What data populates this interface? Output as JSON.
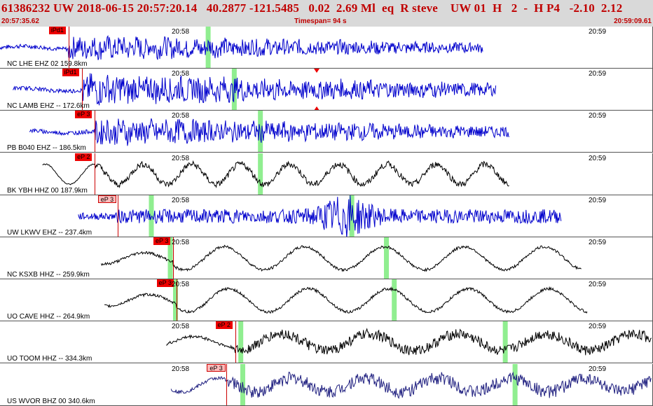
{
  "header": {
    "title": "61386232 UW 2018-06-15 20:57:20.14   40.2877 -121.5485   0.02  2.69 Ml  eq  R steve    UW 01  H   2  -  H P4   -2.10  2.12",
    "start_time": "20:57:35.62",
    "timespan": "Timespan=  94 s",
    "end_time": "20:59:09.61"
  },
  "colors": {
    "header_text": "#c00000",
    "trace_blue": "#0000cc",
    "trace_black": "#000000",
    "trace_navy": "#202080",
    "bar_bg": "#d9d9d9",
    "marker": "#90ee90",
    "pick_red": "#ee0000",
    "pick_pink": "#ffbcbc"
  },
  "traces": [
    {
      "label": "NC LHE EHZ 02 159.8km",
      "tick1": "20:58",
      "tick2": "20:59",
      "pick": "iPd1",
      "pick_style": "red",
      "color": "blue",
      "start": 0.0,
      "pick_time": 0.105,
      "end": 0.74,
      "amp": 0.55,
      "wave": "hf",
      "markers": [
        0.315
      ],
      "flag": null
    },
    {
      "label": "NC LAMB EHZ -- 172.6km",
      "tick1": "20:58",
      "tick2": "20:59",
      "pick": "iPd1",
      "pick_style": "red",
      "color": "blue",
      "start": 0.02,
      "pick_time": 0.125,
      "end": 0.76,
      "amp": 0.7,
      "wave": "hf",
      "markers": [
        0.355
      ],
      "flag": 0.485
    },
    {
      "label": "PB B040 EHZ -- 186.5km",
      "tick1": "20:58",
      "tick2": "20:59",
      "pick": "eP 3",
      "pick_style": "red",
      "color": "blue",
      "start": 0.045,
      "pick_time": 0.145,
      "end": 0.78,
      "amp": 0.6,
      "wave": "hf",
      "markers": [
        0.395
      ],
      "flag": null
    },
    {
      "label": "BK YBH HHZ 00 187.9km",
      "tick1": "20:58",
      "tick2": "20:59",
      "pick": "eP 2",
      "pick_style": "red",
      "color": "black",
      "start": 0.065,
      "pick_time": 0.145,
      "end": 0.78,
      "amp": 0.6,
      "wave": "mf",
      "markers": [
        0.395
      ],
      "flag": null
    },
    {
      "label": "UW LKWV EHZ -- 237.4km",
      "tick1": "20:58",
      "tick2": "20:59",
      "pick": "eP 3",
      "pick_style": "pink",
      "color": "blue",
      "start": 0.12,
      "pick_time": 0.18,
      "end": 0.86,
      "amp": 0.35,
      "wave": "burst",
      "markers": [
        0.228,
        0.535
      ],
      "flag": null
    },
    {
      "label": "NC KSXB HHZ -- 259.9km",
      "tick1": "20:58",
      "tick2": "20:59",
      "pick": "eP 3",
      "pick_style": "red",
      "color": "black",
      "start": 0.155,
      "pick_time": 0.265,
      "end": 0.89,
      "amp": 0.55,
      "wave": "lf",
      "markers": [
        0.257,
        0.588
      ],
      "flag": null
    },
    {
      "label": "UO CAVE HHZ -- 264.9km",
      "tick1": "20:58",
      "tick2": "20:59",
      "pick": "eP 3",
      "pick_style": "red",
      "color": "black",
      "start": 0.16,
      "pick_time": 0.27,
      "end": 0.9,
      "amp": 0.55,
      "wave": "lf",
      "markers": [
        0.265,
        0.6
      ],
      "flag": null
    },
    {
      "label": "UO TOOM HHZ -- 334.3km",
      "tick1": "20:58",
      "tick2": "20:59",
      "pick": "eP 2",
      "pick_style": "red",
      "color": "black",
      "start": 0.255,
      "pick_time": 0.36,
      "end": 1.0,
      "amp": 0.5,
      "wave": "mix",
      "markers": [
        0.365,
        0.77
      ],
      "flag": null
    },
    {
      "label": "US WVOR BHZ 00 340.6km",
      "tick1": "20:58",
      "tick2": "20:59",
      "pick": "eP 3",
      "pick_style": "pink",
      "color": "navy",
      "start": 0.262,
      "pick_time": 0.347,
      "end": 1.0,
      "amp": 0.55,
      "wave": "mix2",
      "markers": [
        0.368,
        0.785
      ],
      "flag": null
    }
  ]
}
